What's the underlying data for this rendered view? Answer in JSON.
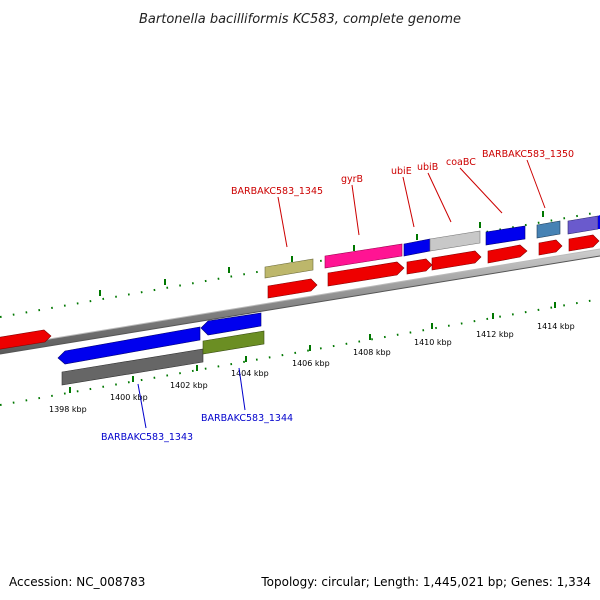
{
  "title": "Bartonella bacilliformis KC583, complete genome",
  "footer": {
    "accession": "Accession: NC_008783",
    "info": "Topology: circular; Length: 1,445,021 bp; Genes: 1,334"
  },
  "scale_labels": [
    "1398 kbp",
    "1400 kbp",
    "1402 kbp",
    "1404 kbp",
    "1406 kbp",
    "1408 kbp",
    "1410 kbp",
    "1412 kbp",
    "1414 kbp"
  ],
  "gene_labels_forward": [
    "BARBAKC583_1345",
    "gyrB",
    "ubiE",
    "ubiB",
    "coaBC",
    "BARBAKC583_1350"
  ],
  "gene_labels_reverse": [
    "BARBAKC583_1343",
    "BARBAKC583_1344"
  ],
  "colors": {
    "forward_label": "#cc0000",
    "reverse_label": "#0000cc",
    "cds_red": "#ee0000",
    "backbone": "#888888",
    "tick": "#007700"
  }
}
